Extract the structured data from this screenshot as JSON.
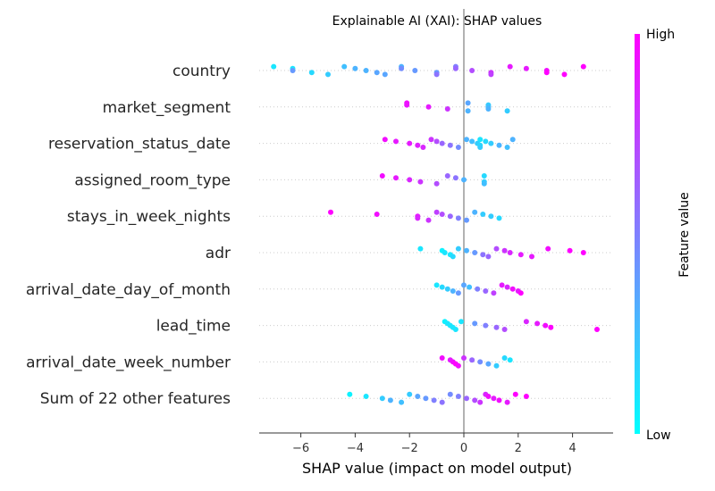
{
  "chart_data": {
    "type": "scatter",
    "subtype": "shap-beeswarm",
    "title": "Explainable AI (XAI): SHAP values",
    "xlabel": "SHAP value (impact on model output)",
    "ylabel": "",
    "xlim": [
      -7.6,
      5.5
    ],
    "xticks": [
      -6,
      -4,
      -2,
      0,
      2,
      4
    ],
    "xtick_labels": [
      "−6",
      "−4",
      "−2",
      "0",
      "2",
      "4"
    ],
    "colorbar": {
      "label": "Feature value",
      "high": "High",
      "low": "Low",
      "cmap": "cool",
      "low_color": "#00ffff",
      "high_color": "#ff00ff"
    },
    "features": [
      {
        "name": "country",
        "points": [
          [
            -7,
            0.1
          ],
          [
            -6.3,
            0.1
          ],
          [
            -6.3,
            0.4
          ],
          [
            -5.6,
            0.15
          ],
          [
            -5,
            0.2
          ],
          [
            -4.4,
            0.25
          ],
          [
            -4,
            0.3
          ],
          [
            -3.6,
            0.3
          ],
          [
            -3.2,
            0.35
          ],
          [
            -2.9,
            0.35
          ],
          [
            -2.3,
            0.3
          ],
          [
            -2.3,
            0.45
          ],
          [
            -1.8,
            0.4
          ],
          [
            -1,
            0.4
          ],
          [
            -1,
            0.55
          ],
          [
            -0.3,
            0.5
          ],
          [
            -0.3,
            0.6
          ],
          [
            0.3,
            0.7
          ],
          [
            1,
            0.8
          ],
          [
            1,
            0.75
          ],
          [
            1.7,
            0.9
          ],
          [
            2.3,
            0.9
          ],
          [
            3.05,
            0.95
          ],
          [
            3.05,
            1.0
          ],
          [
            3.7,
            1.0
          ],
          [
            4.4,
            1.0
          ]
        ]
      },
      {
        "name": "market_segment",
        "points": [
          [
            -2.1,
            0.95
          ],
          [
            -2.1,
            0.92
          ],
          [
            -1.3,
            0.9
          ],
          [
            -0.6,
            0.8
          ],
          [
            0.15,
            0.3
          ],
          [
            0.15,
            0.35
          ],
          [
            0.9,
            0.2
          ],
          [
            0.9,
            0.25
          ],
          [
            0.9,
            0.3
          ],
          [
            1.6,
            0.2
          ]
        ]
      },
      {
        "name": "reservation_status_date",
        "points": [
          [
            -2.9,
            0.95
          ],
          [
            -2.5,
            0.9
          ],
          [
            -2,
            0.9
          ],
          [
            -1.7,
            0.88
          ],
          [
            -1.5,
            0.85
          ],
          [
            -1.2,
            0.8
          ],
          [
            -1,
            0.7
          ],
          [
            -0.8,
            0.6
          ],
          [
            -0.5,
            0.55
          ],
          [
            -0.2,
            0.45
          ],
          [
            0.1,
            0.3
          ],
          [
            0.3,
            0.25
          ],
          [
            0.5,
            0.2
          ],
          [
            0.6,
            0.15
          ],
          [
            0.6,
            0.2
          ],
          [
            0.6,
            0.1
          ],
          [
            0.8,
            0.15
          ],
          [
            1,
            0.2
          ],
          [
            1.3,
            0.3
          ],
          [
            1.6,
            0.25
          ],
          [
            1.8,
            0.3
          ]
        ]
      },
      {
        "name": "assigned_room_type",
        "points": [
          [
            -3,
            0.95
          ],
          [
            -2.5,
            0.9
          ],
          [
            -2,
            0.85
          ],
          [
            -1.6,
            0.8
          ],
          [
            -1,
            0.7
          ],
          [
            -0.6,
            0.6
          ],
          [
            -0.3,
            0.55
          ],
          [
            0,
            0.3
          ],
          [
            0.75,
            0.2
          ],
          [
            0.75,
            0.25
          ],
          [
            0.75,
            0.15
          ]
        ]
      },
      {
        "name": "stays_in_week_nights",
        "points": [
          [
            -4.9,
            1.0
          ],
          [
            -3.2,
            0.95
          ],
          [
            -1.7,
            0.9
          ],
          [
            -1.7,
            0.85
          ],
          [
            -1.3,
            0.8
          ],
          [
            -1.0,
            0.75
          ],
          [
            -0.8,
            0.7
          ],
          [
            -0.5,
            0.6
          ],
          [
            -0.2,
            0.5
          ],
          [
            0.1,
            0.4
          ],
          [
            0.4,
            0.3
          ],
          [
            0.7,
            0.2
          ],
          [
            1.0,
            0.2
          ],
          [
            1.3,
            0.15
          ]
        ]
      },
      {
        "name": "adr",
        "points": [
          [
            -1.6,
            0.1
          ],
          [
            -0.8,
            0.05
          ],
          [
            -0.7,
            0.1
          ],
          [
            -0.5,
            0.1
          ],
          [
            -0.4,
            0.15
          ],
          [
            -0.2,
            0.2
          ],
          [
            0.1,
            0.3
          ],
          [
            0.4,
            0.4
          ],
          [
            0.7,
            0.55
          ],
          [
            0.9,
            0.6
          ],
          [
            1.2,
            0.7
          ],
          [
            1.5,
            0.8
          ],
          [
            1.7,
            0.85
          ],
          [
            2.1,
            0.9
          ],
          [
            2.5,
            0.9
          ],
          [
            3.1,
            0.95
          ],
          [
            3.9,
            1.0
          ],
          [
            4.4,
            1.0
          ]
        ]
      },
      {
        "name": "arrival_date_day_of_month",
        "points": [
          [
            -1.0,
            0.1
          ],
          [
            -0.8,
            0.15
          ],
          [
            -0.6,
            0.2
          ],
          [
            -0.4,
            0.3
          ],
          [
            -0.2,
            0.4
          ],
          [
            0,
            0.35
          ],
          [
            0.2,
            0.25
          ],
          [
            0.5,
            0.5
          ],
          [
            0.8,
            0.6
          ],
          [
            1.1,
            0.75
          ],
          [
            1.4,
            0.9
          ],
          [
            1.6,
            0.85
          ],
          [
            1.8,
            0.95
          ],
          [
            2.0,
            0.9
          ],
          [
            2.1,
            1.0
          ]
        ]
      },
      {
        "name": "lead_time",
        "points": [
          [
            -0.7,
            0.05
          ],
          [
            -0.6,
            0.1
          ],
          [
            -0.5,
            0.1
          ],
          [
            -0.4,
            0.1
          ],
          [
            -0.3,
            0.1
          ],
          [
            -0.1,
            0.1
          ],
          [
            0.4,
            0.4
          ],
          [
            0.8,
            0.5
          ],
          [
            1.2,
            0.6
          ],
          [
            1.5,
            0.7
          ],
          [
            2.3,
            0.85
          ],
          [
            2.7,
            0.9
          ],
          [
            3,
            0.95
          ],
          [
            3.2,
            1.0
          ],
          [
            4.9,
            1.0
          ]
        ]
      },
      {
        "name": "arrival_date_week_number",
        "points": [
          [
            -0.8,
            0.95
          ],
          [
            -0.5,
            0.9
          ],
          [
            -0.4,
            0.95
          ],
          [
            -0.3,
            1.0
          ],
          [
            -0.2,
            0.95
          ],
          [
            0,
            0.8
          ],
          [
            0.3,
            0.6
          ],
          [
            0.6,
            0.45
          ],
          [
            0.9,
            0.35
          ],
          [
            1.2,
            0.2
          ],
          [
            1.5,
            0.15
          ],
          [
            1.7,
            0.1
          ]
        ]
      },
      {
        "name": "Sum of 22 other features",
        "points": [
          [
            -4.2,
            0.05
          ],
          [
            -3.6,
            0.1
          ],
          [
            -3,
            0.2
          ],
          [
            -2.7,
            0.3
          ],
          [
            -2.3,
            0.25
          ],
          [
            -2,
            0.2
          ],
          [
            -1.7,
            0.35
          ],
          [
            -1.4,
            0.4
          ],
          [
            -1.1,
            0.5
          ],
          [
            -0.8,
            0.55
          ],
          [
            -0.5,
            0.45
          ],
          [
            -0.2,
            0.5
          ],
          [
            0.1,
            0.6
          ],
          [
            0.4,
            0.7
          ],
          [
            0.6,
            0.8
          ],
          [
            0.8,
            0.85
          ],
          [
            0.9,
            0.95
          ],
          [
            1.1,
            0.9
          ],
          [
            1.3,
            0.95
          ],
          [
            1.6,
            0.9
          ],
          [
            1.9,
            1.0
          ],
          [
            2.3,
            1.0
          ]
        ]
      }
    ]
  }
}
